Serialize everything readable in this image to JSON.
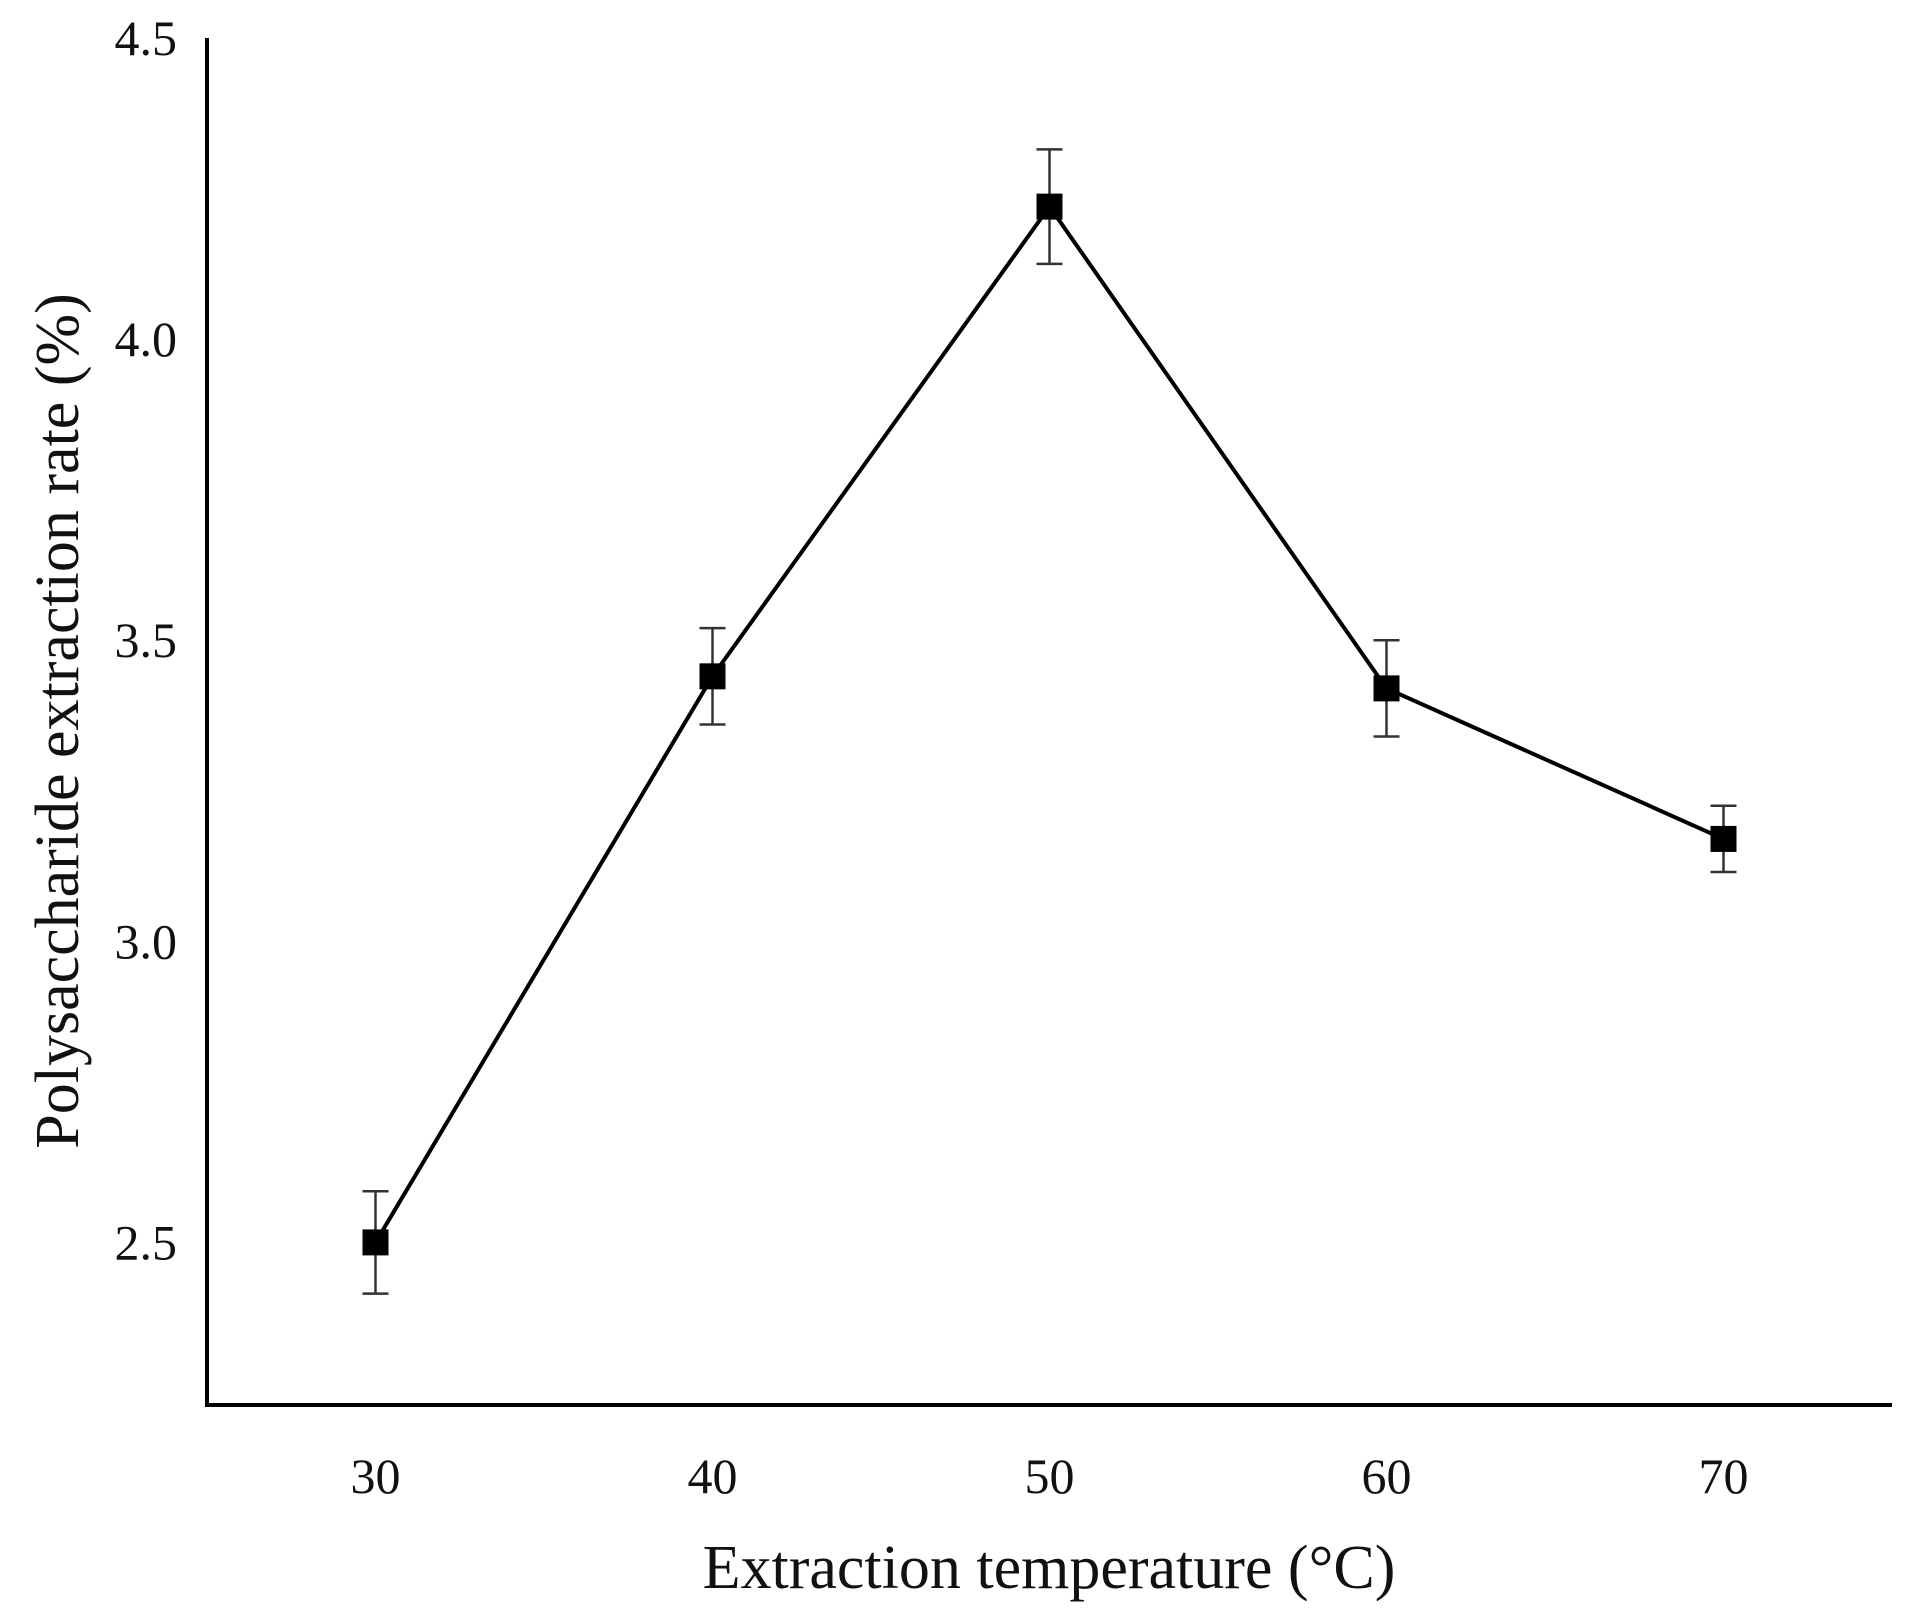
{
  "chart_data": {
    "type": "line",
    "title": "",
    "xlabel": "Extraction temperature (°C)",
    "ylabel": "Polysaccharide extraction rate (%)",
    "x": [
      30,
      40,
      50,
      60,
      70
    ],
    "x_tick_labels": [
      "30",
      "40",
      "50",
      "60",
      "70"
    ],
    "y_tick_labels": [
      "2.5",
      "3.0",
      "3.5",
      "4.0",
      "4.5"
    ],
    "y_ticks": [
      2.5,
      3.0,
      3.5,
      4.0,
      4.5
    ],
    "ylim": [
      2.23,
      4.5
    ],
    "xlim": [
      25,
      75
    ],
    "grid": false,
    "legend": "none",
    "series": [
      {
        "name": "Extraction rate",
        "values": [
          2.5,
          3.44,
          4.22,
          3.42,
          3.17
        ],
        "error": [
          0.085,
          0.08,
          0.095,
          0.08,
          0.055
        ],
        "marker": "square",
        "color": "#000000"
      }
    ]
  }
}
